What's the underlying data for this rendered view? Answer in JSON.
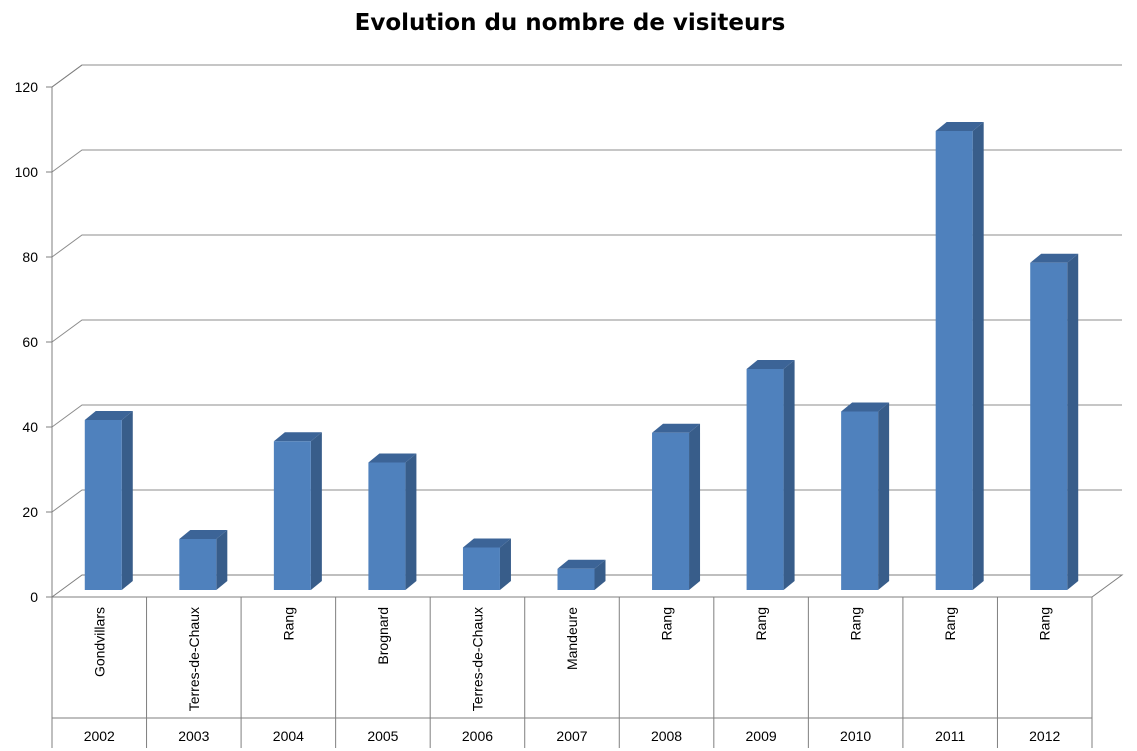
{
  "chart_data": {
    "type": "bar",
    "title": "Evolution du nombre de visiteurs",
    "xlabel": "",
    "ylabel": "",
    "ylim": [
      0,
      120
    ],
    "yticks": [
      "0",
      "20",
      "40",
      "60",
      "80",
      "100",
      "120"
    ],
    "grid": true,
    "legend": "none",
    "style": "3d-column",
    "categories": [
      {
        "place": "Gondvillars",
        "year": "2002"
      },
      {
        "place": "Terres-de-Chaux",
        "year": "2003"
      },
      {
        "place": "Rang",
        "year": "2004"
      },
      {
        "place": "Brognard",
        "year": "2005"
      },
      {
        "place": "Terres-de-Chaux",
        "year": "2006"
      },
      {
        "place": "Mandeure",
        "year": "2007"
      },
      {
        "place": "Rang",
        "year": "2008"
      },
      {
        "place": "Rang",
        "year": "2009"
      },
      {
        "place": "Rang",
        "year": "2010"
      },
      {
        "place": "Rang",
        "year": "2011"
      },
      {
        "place": "Rang",
        "year": "2012"
      }
    ],
    "values": [
      40,
      12,
      35,
      30,
      10,
      5,
      37,
      52,
      42,
      108,
      77
    ],
    "colors": {
      "bar_front": "#4f81bd",
      "bar_side": "#385d8a",
      "bar_top": "#3c6497",
      "grid": "#8c8c8c",
      "axis": "#7f7f7f"
    }
  }
}
